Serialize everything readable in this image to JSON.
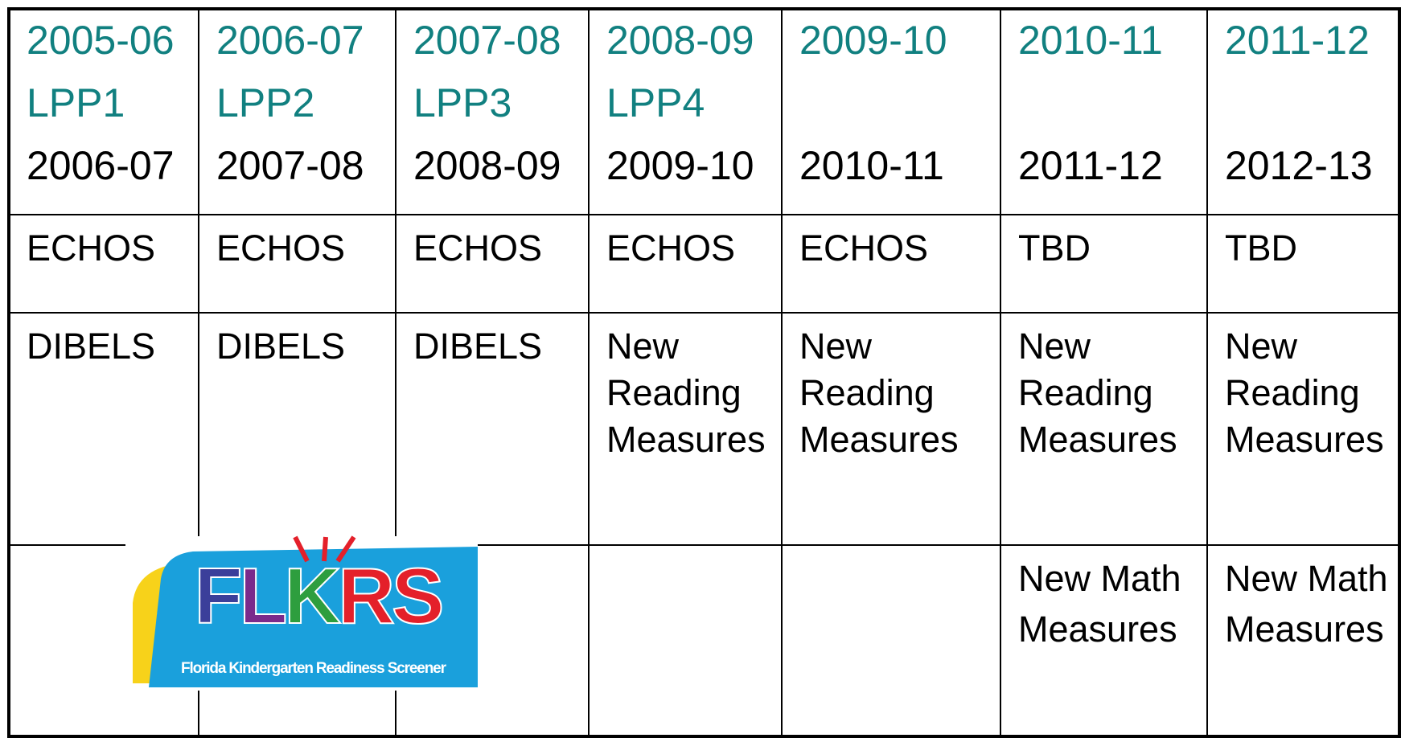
{
  "table": {
    "header": [
      {
        "years": "2005-06",
        "lpp": "LPP1",
        "target": "2006-07"
      },
      {
        "years": "2006-07",
        "lpp": "LPP2",
        "target": "2007-08"
      },
      {
        "years": "2007-08",
        "lpp": "LPP3",
        "target": "2008-09"
      },
      {
        "years": "2008-09",
        "lpp": "LPP4",
        "target": "2009-10"
      },
      {
        "years": "2009-10",
        "target": "2010-11"
      },
      {
        "years": "2010-11",
        "target": "2011-12"
      },
      {
        "years": "2011-12",
        "target": "2012-13"
      }
    ],
    "rows": [
      [
        "ECHOS",
        "ECHOS",
        "ECHOS",
        "ECHOS",
        "ECHOS",
        "TBD",
        "TBD"
      ],
      [
        "DIBELS",
        "DIBELS",
        "DIBELS",
        "New Reading Measures",
        "New Reading Measures",
        "New Reading Measures",
        "New Reading Measures"
      ],
      [
        null,
        null,
        null,
        null,
        null,
        "New Math Measures",
        "New Math Measures"
      ]
    ]
  },
  "logo": {
    "text": "FLKRS",
    "caption": "Florida Kindergarten Readiness Screener"
  }
}
